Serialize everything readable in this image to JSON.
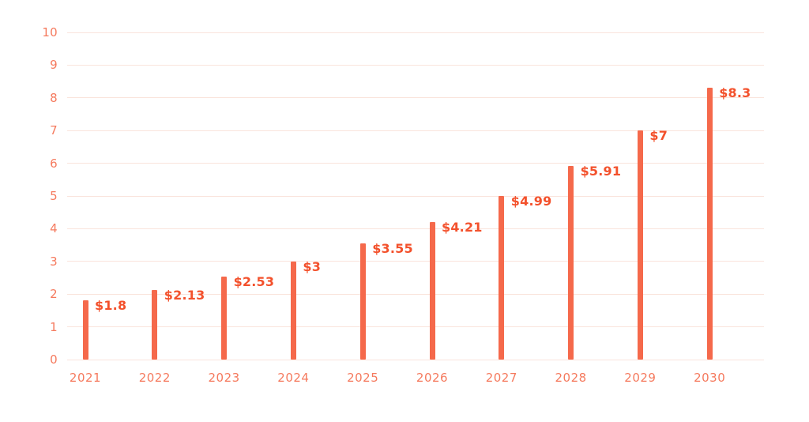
{
  "chart_data": {
    "type": "bar",
    "title": "",
    "xlabel": "",
    "ylabel": "",
    "categories": [
      "2021",
      "2022",
      "2023",
      "2024",
      "2025",
      "2026",
      "2027",
      "2028",
      "2029",
      "2030"
    ],
    "values": [
      1.8,
      2.13,
      2.53,
      3,
      3.55,
      4.21,
      4.99,
      5.91,
      7,
      8.3
    ],
    "value_labels": [
      "$1.8",
      "$2.13",
      "$2.53",
      "$3",
      "$3.55",
      "$4.21",
      "$4.99",
      "$5.91",
      "$7",
      "$8.3"
    ],
    "ylim": [
      0,
      10
    ],
    "yticks": [
      0,
      1,
      2,
      3,
      4,
      5,
      6,
      7,
      8,
      9,
      10
    ],
    "grid": true,
    "legend": false,
    "colors": {
      "bar": "#F5694B",
      "value_label": "#F3512C",
      "tick_label": "#F57A5E",
      "gridline": "#FAE4DC",
      "background": "#FFFFFF"
    }
  }
}
